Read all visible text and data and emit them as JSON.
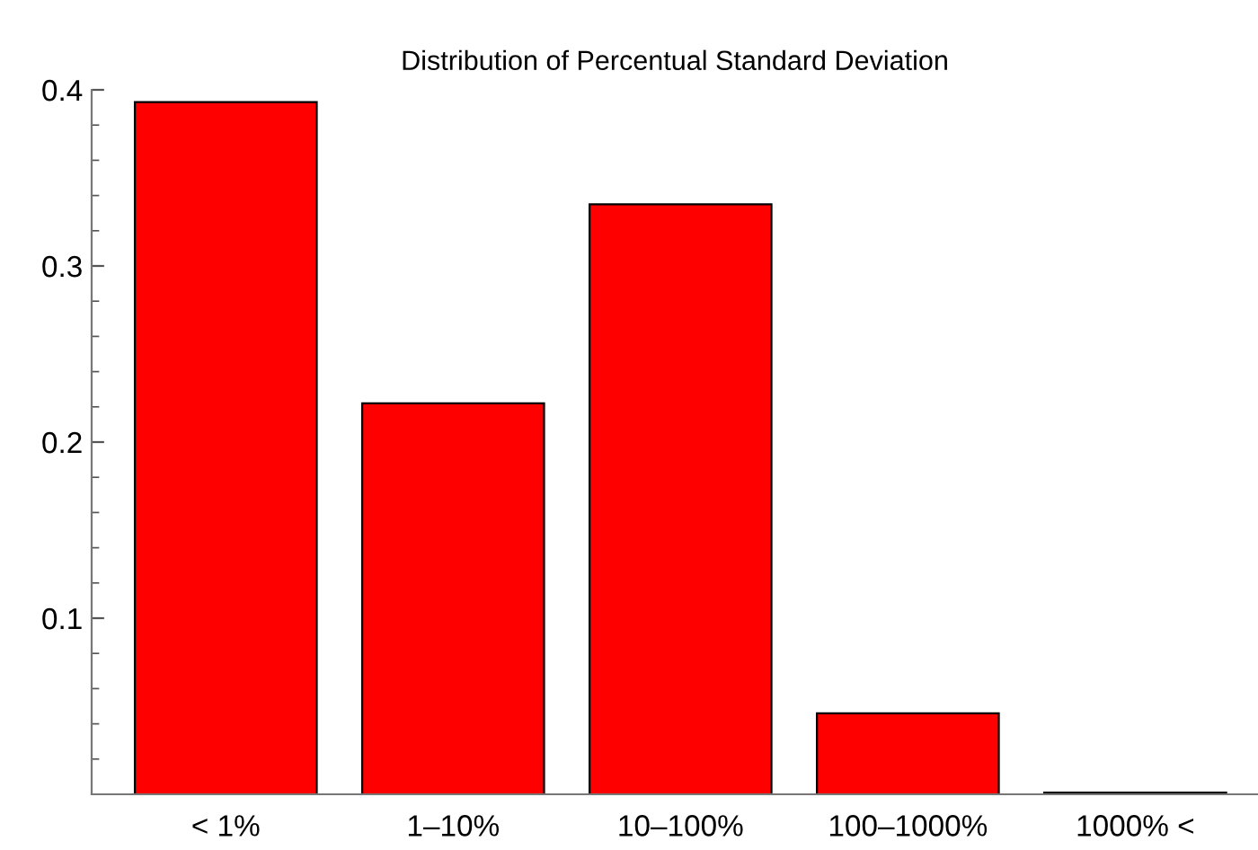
{
  "chart_data": {
    "type": "bar",
    "title": "Distribution of Percentual Standard Deviation",
    "categories": [
      "< 1%",
      "1–10%",
      "10–100%",
      "100–1000%",
      "1000% <"
    ],
    "values": [
      0.393,
      0.222,
      0.335,
      0.046,
      0.001
    ],
    "color": "#ff0000",
    "ylim": [
      0,
      0.4
    ],
    "yticks": [
      0.1,
      0.2,
      0.3,
      0.4
    ],
    "grid": false
  }
}
